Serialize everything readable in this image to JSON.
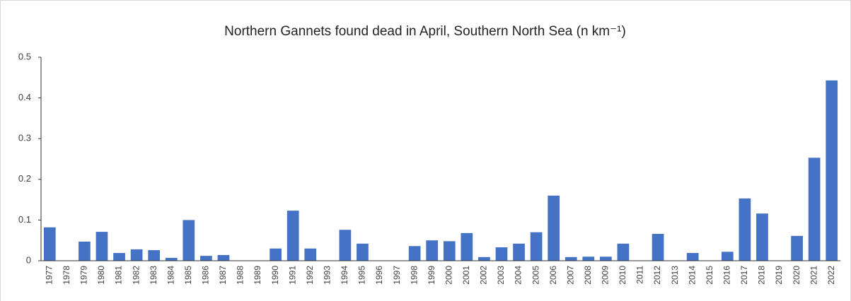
{
  "chart_data": {
    "type": "bar",
    "title": "Northern Gannets found dead in April, Southern North Sea (n km⁻¹)",
    "categories": [
      "1977",
      "1978",
      "1979",
      "1980",
      "1981",
      "1982",
      "1983",
      "1984",
      "1985",
      "1986",
      "1987",
      "1988",
      "1989",
      "1990",
      "1991",
      "1992",
      "1993",
      "1994",
      "1995",
      "1996",
      "1997",
      "1998",
      "1999",
      "2000",
      "2001",
      "2002",
      "2003",
      "2004",
      "2005",
      "2006",
      "2007",
      "2008",
      "2009",
      "2010",
      "2011",
      "2012",
      "2013",
      "2014",
      "2015",
      "2016",
      "2017",
      "2018",
      "2019",
      "2020",
      "2021",
      "2022"
    ],
    "values": [
      0.082,
      0,
      0.047,
      0.071,
      0.019,
      0.028,
      0.026,
      0.007,
      0.1,
      0.012,
      0.014,
      0,
      0,
      0.03,
      0.123,
      0.03,
      0,
      0.076,
      0.042,
      0,
      0,
      0.036,
      0.05,
      0.048,
      0.068,
      0.009,
      0.033,
      0.042,
      0.07,
      0.16,
      0.009,
      0.01,
      0.01,
      0.042,
      0,
      0.066,
      0,
      0.019,
      0,
      0.022,
      0.153,
      0.116,
      0,
      0.061,
      0.253,
      0.443
    ],
    "color": "#4472c4",
    "ylim": [
      0,
      0.5
    ],
    "yticks": [
      0,
      0.1,
      0.2,
      0.3,
      0.4,
      0.5
    ],
    "grid": false
  }
}
